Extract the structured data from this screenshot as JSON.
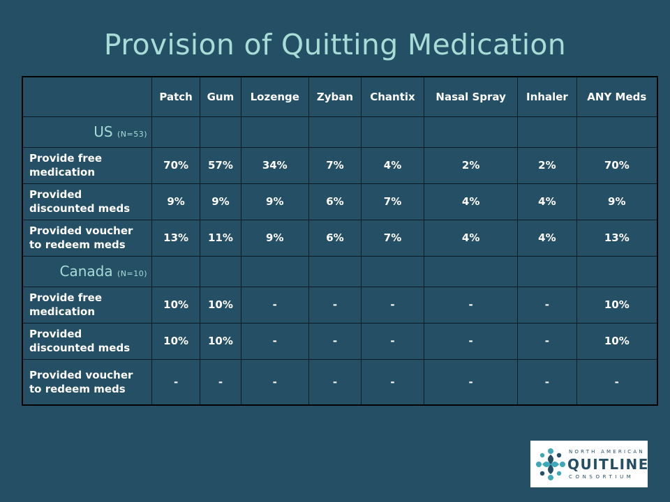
{
  "title": "Provision of Quitting Medication",
  "columns": [
    "Patch",
    "Gum",
    "Lozenge",
    "Zyban",
    "Chantix",
    "Nasal Spray",
    "Inhaler",
    "ANY Meds"
  ],
  "us": {
    "label": "US",
    "n": "(N=53)",
    "rows": [
      {
        "label": "Provide free medication",
        "values": [
          "70%",
          "57%",
          "34%",
          "7%",
          "4%",
          "2%",
          "2%",
          "70%"
        ]
      },
      {
        "label": "Provided discounted meds",
        "values": [
          "9%",
          "9%",
          "9%",
          "6%",
          "7%",
          "4%",
          "4%",
          "9%"
        ]
      },
      {
        "label": "Provided voucher to redeem meds",
        "values": [
          "13%",
          "11%",
          "9%",
          "6%",
          "7%",
          "4%",
          "4%",
          "13%"
        ]
      }
    ]
  },
  "canada": {
    "label": "Canada",
    "n": "(N=10)",
    "rows": [
      {
        "label": "Provide free medication",
        "values": [
          "10%",
          "10%",
          "-",
          "-",
          "-",
          "-",
          "-",
          "10%"
        ]
      },
      {
        "label": "Provided discounted meds",
        "values": [
          "10%",
          "10%",
          "-",
          "-",
          "-",
          "-",
          "-",
          "10%"
        ]
      },
      {
        "label": "Provided voucher to redeem meds",
        "values": [
          "-",
          "-",
          "-",
          "-",
          "-",
          "-",
          "-",
          "-"
        ]
      }
    ]
  },
  "logo": {
    "top": "NORTH AMERICAN",
    "main": "QUITLINE",
    "bottom": "CONSORTIUM",
    "icon": "pinwheel-logo-icon",
    "colors": {
      "teal": "#3fa8b8",
      "navy": "#244f64"
    }
  }
}
